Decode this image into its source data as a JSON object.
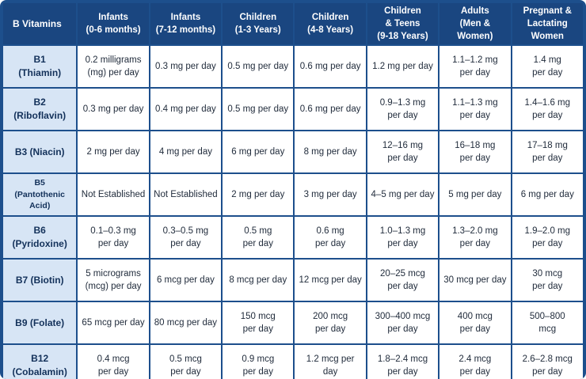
{
  "header": {
    "corner": "B Vitamins",
    "columns": [
      "Infants\n(0-6 months)",
      "Infants\n(7-12 months)",
      "Children\n(1-3 Years)",
      "Children\n(4-8 Years)",
      "Children\n& Teens\n(9-18 Years)",
      "Adults\n(Men &\nWomen)",
      "Pregnant &\nLactating\nWomen"
    ]
  },
  "rows": [
    {
      "vitamin": "B1\n(Thiamin)",
      "values": [
        "0.2 milligrams\n(mg) per day",
        "0.3 mg per day",
        "0.5 mg per day",
        "0.6 mg per day",
        "1.2 mg per day",
        "1.1–1.2 mg\nper day",
        "1.4 mg\nper day"
      ]
    },
    {
      "vitamin": "B2\n(Riboflavin)",
      "values": [
        "0.3 mg per day",
        "0.4 mg per day",
        "0.5 mg per day",
        "0.6 mg per day",
        "0.9–1.3 mg\nper day",
        "1.1–1.3 mg\nper day",
        "1.4–1.6 mg\nper day"
      ]
    },
    {
      "vitamin": "B3 (Niacin)",
      "values": [
        "2 mg per day",
        "4 mg per day",
        "6 mg per day",
        "8 mg per day",
        "12–16 mg\nper day",
        "16–18 mg\nper day",
        "17–18 mg\nper day"
      ]
    },
    {
      "vitamin": "B5\n(Pantothenic\nAcid)",
      "values": [
        "Not Established",
        "Not Established",
        "2 mg per day",
        "3 mg per day",
        "4–5 mg per day",
        "5 mg per day",
        "6 mg per day"
      ]
    },
    {
      "vitamin": "B6\n(Pyridoxine)",
      "values": [
        "0.1–0.3 mg\nper day",
        "0.3–0.5 mg\nper day",
        "0.5 mg\nper day",
        "0.6 mg\nper day",
        "1.0–1.3 mg\nper day",
        "1.3–2.0 mg\nper day",
        "1.9–2.0 mg\nper day"
      ]
    },
    {
      "vitamin": "B7 (Biotin)",
      "values": [
        "5 micrograms\n(mcg) per day",
        "6 mcg per day",
        "8 mcg per day",
        "12 mcg per day",
        "20–25 mcg\nper day",
        "30 mcg per day",
        "30 mcg\nper day"
      ]
    },
    {
      "vitamin": "B9 (Folate)",
      "values": [
        "65 mcg per day",
        "80 mcg per day",
        "150 mcg\nper day",
        "200 mcg\nper day",
        "300–400 mcg\nper day",
        "400 mcg\nper day",
        "500–800\nmcg"
      ]
    },
    {
      "vitamin": "B12\n(Cobalamin)",
      "values": [
        "0.4 mcg\nper day",
        "0.5 mcg\nper day",
        "0.9 mcg\nper day",
        "1.2 mcg per\nday",
        "1.8–2.4 mcg\nper day",
        "2.4 mcg\nper day",
        "2.6–2.8 mcg\nper day"
      ]
    }
  ]
}
